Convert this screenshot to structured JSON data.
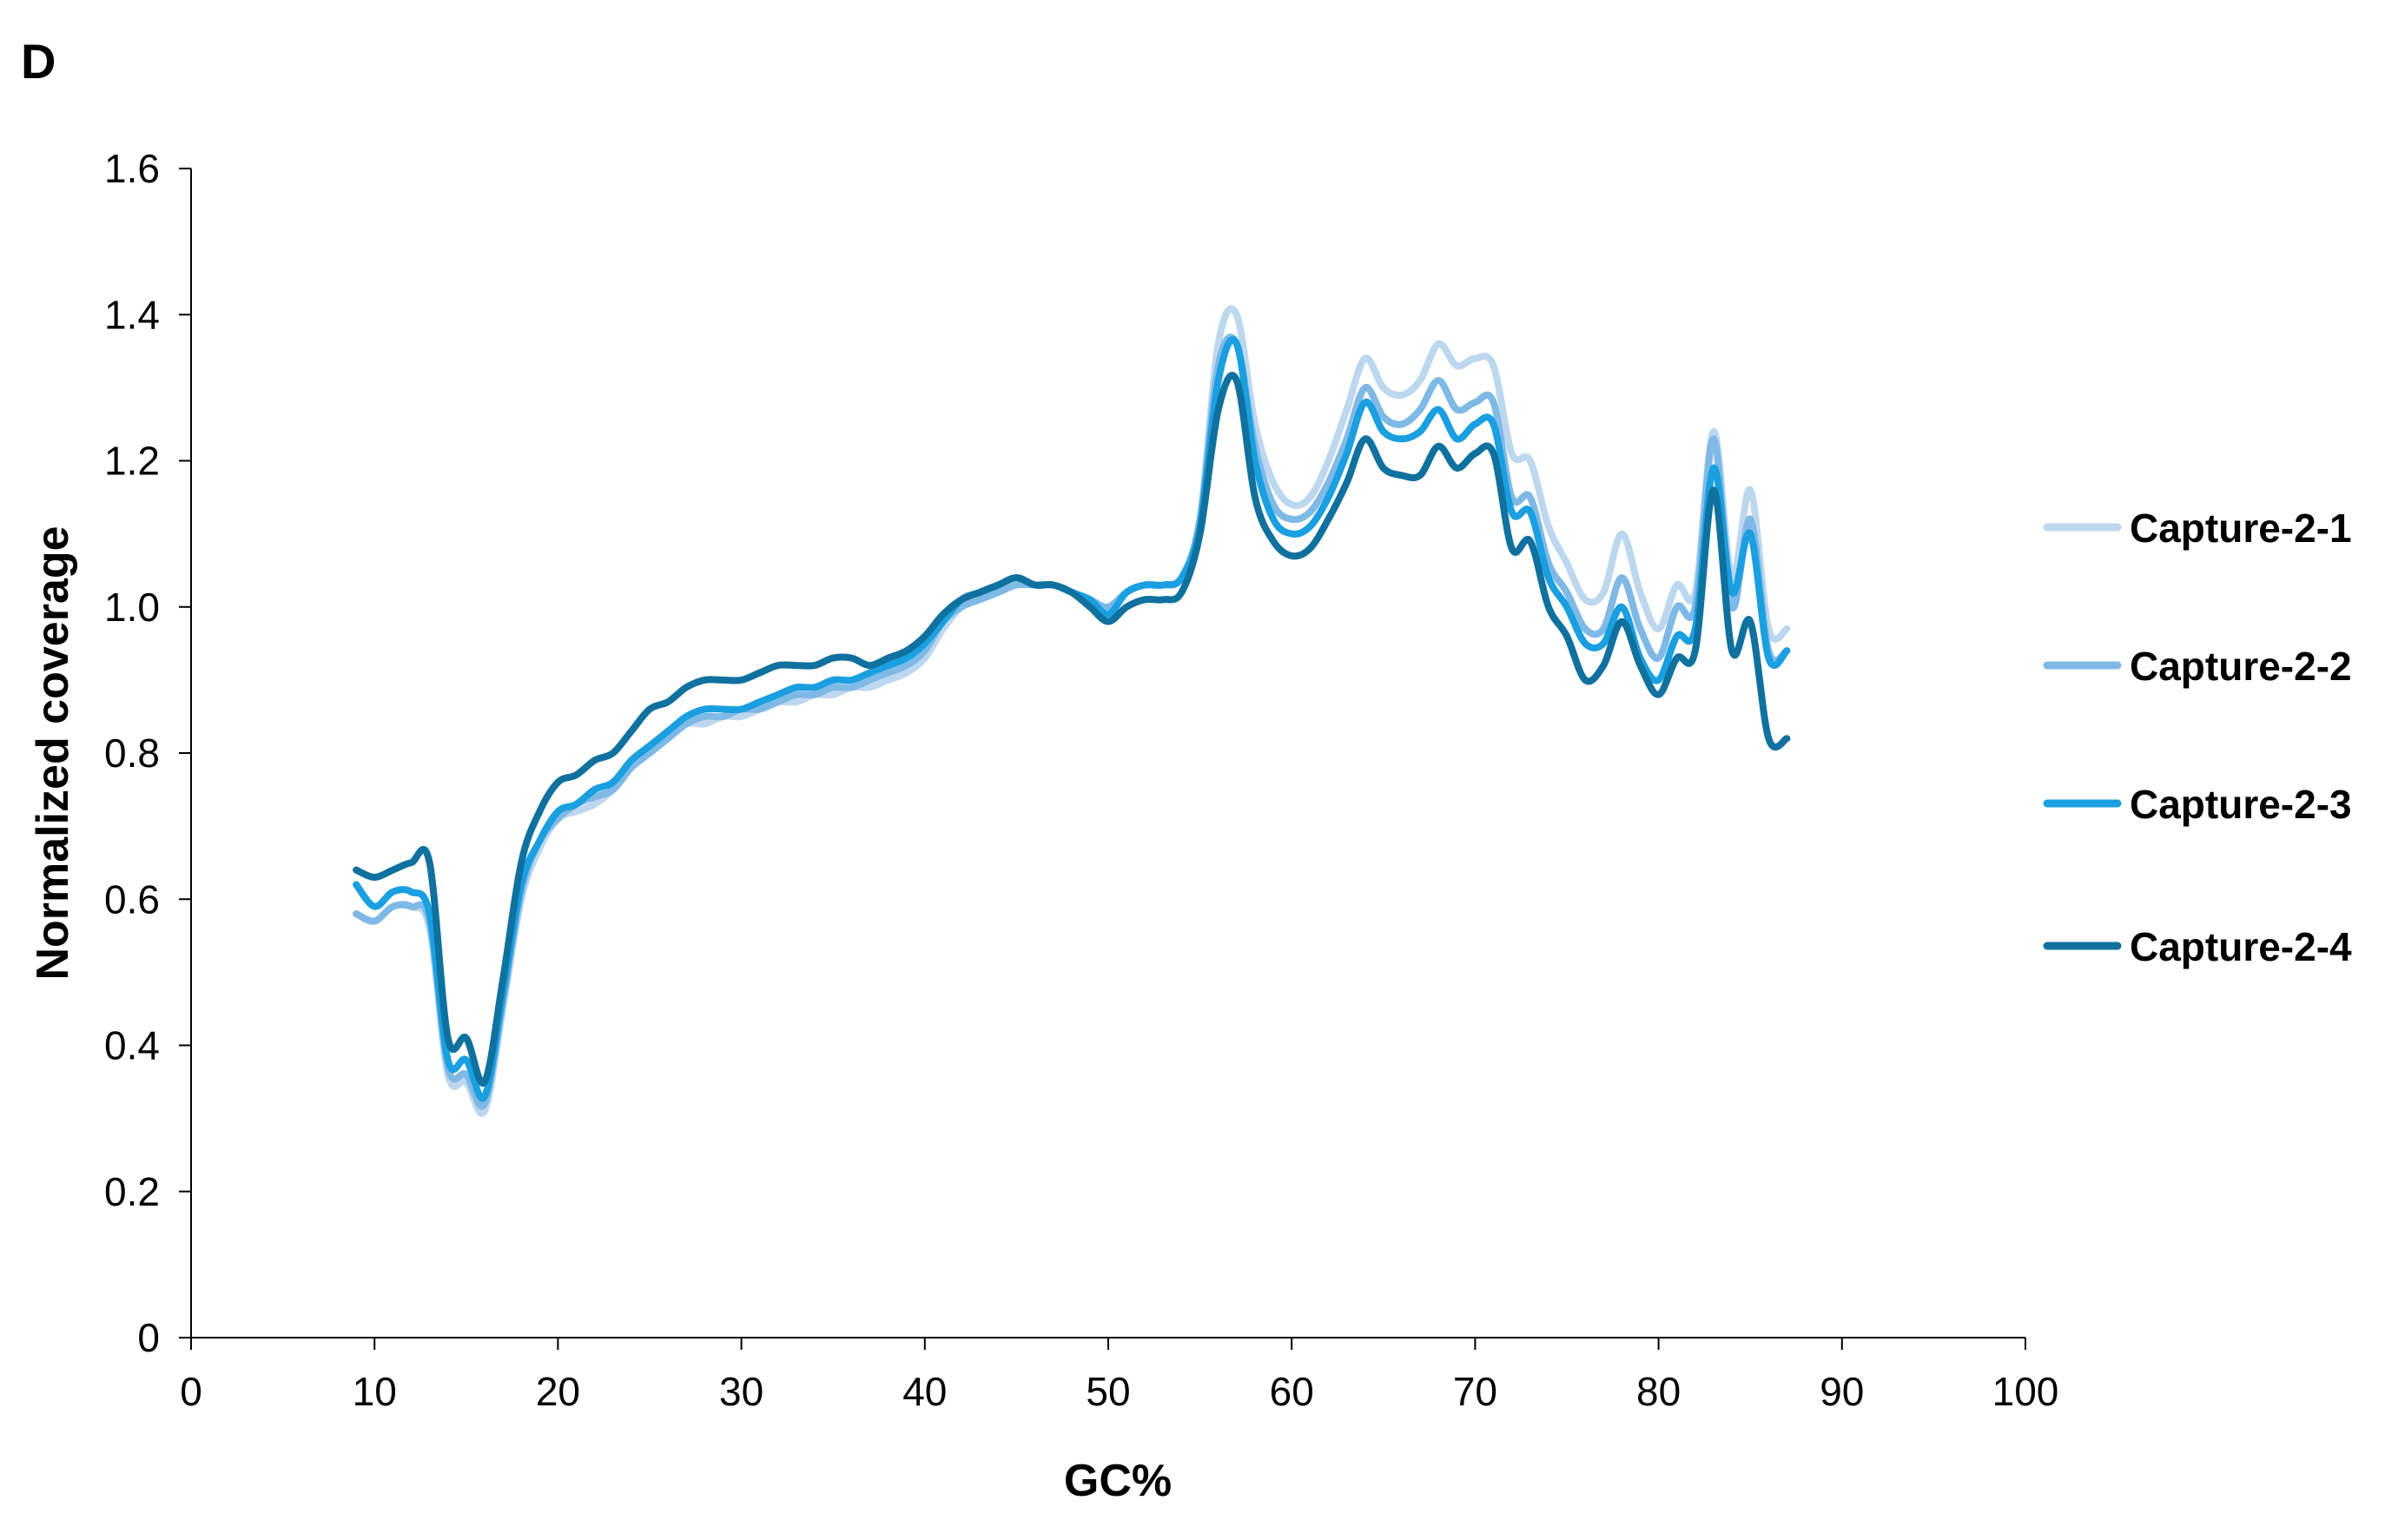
{
  "panel_label": "D",
  "chart_data": {
    "type": "line",
    "title": "",
    "xlabel": "GC%",
    "ylabel": "Normalized coverage",
    "xlim": [
      0,
      100
    ],
    "ylim": [
      0,
      1.6
    ],
    "xticks": [
      0,
      10,
      20,
      30,
      40,
      50,
      60,
      70,
      80,
      90,
      100
    ],
    "yticks": [
      0,
      0.2,
      0.4,
      0.6,
      0.8,
      1.0,
      1.2,
      1.4,
      1.6
    ],
    "ytick_labels": [
      "0",
      "0.2",
      "0.4",
      "0.6",
      "0.8",
      "1.0",
      "1.2",
      "1.4",
      "1.6"
    ],
    "grid": false,
    "legend_position": "right",
    "x": [
      9,
      10,
      11,
      12,
      13,
      14,
      15,
      16,
      17,
      18,
      19,
      20,
      21,
      22,
      23,
      24,
      25,
      26,
      27,
      28,
      29,
      30,
      31,
      32,
      33,
      34,
      35,
      36,
      37,
      38,
      39,
      40,
      41,
      42,
      43,
      44,
      45,
      46,
      47,
      48,
      49,
      50,
      51,
      52,
      53,
      54,
      55,
      56,
      57,
      58,
      59,
      60,
      61,
      62,
      63,
      64,
      65,
      66,
      67,
      68,
      69,
      70,
      71,
      72,
      73,
      74,
      75,
      76,
      77,
      78,
      79,
      80,
      81,
      82,
      83,
      84,
      85,
      86,
      87
    ],
    "series": [
      {
        "name": "Capture-2-1",
        "color": "#bdd7ee",
        "values": [
          0.58,
          0.57,
          0.59,
          0.59,
          0.56,
          0.36,
          0.35,
          0.31,
          0.45,
          0.6,
          0.67,
          0.71,
          0.72,
          0.73,
          0.75,
          0.78,
          0.8,
          0.82,
          0.84,
          0.84,
          0.85,
          0.85,
          0.86,
          0.87,
          0.87,
          0.88,
          0.88,
          0.89,
          0.89,
          0.9,
          0.91,
          0.93,
          0.97,
          1.0,
          1.01,
          1.02,
          1.03,
          1.03,
          1.03,
          1.02,
          1.01,
          1.0,
          1.02,
          1.03,
          1.03,
          1.04,
          1.12,
          1.36,
          1.4,
          1.25,
          1.17,
          1.14,
          1.15,
          1.2,
          1.27,
          1.34,
          1.3,
          1.29,
          1.31,
          1.36,
          1.33,
          1.34,
          1.33,
          1.21,
          1.2,
          1.11,
          1.06,
          1.01,
          1.02,
          1.1,
          1.02,
          0.97,
          1.03,
          1.02,
          1.24,
          1.04,
          1.16,
          0.97,
          0.97
        ]
      },
      {
        "name": "Capture-2-2",
        "color": "#7fb9e6",
        "values": [
          0.58,
          0.57,
          0.59,
          0.59,
          0.57,
          0.37,
          0.36,
          0.32,
          0.46,
          0.61,
          0.68,
          0.71,
          0.73,
          0.74,
          0.75,
          0.78,
          0.8,
          0.82,
          0.84,
          0.85,
          0.85,
          0.86,
          0.86,
          0.87,
          0.88,
          0.88,
          0.89,
          0.89,
          0.9,
          0.91,
          0.92,
          0.94,
          0.98,
          1.0,
          1.01,
          1.02,
          1.03,
          1.03,
          1.03,
          1.02,
          1.01,
          1.0,
          1.02,
          1.03,
          1.03,
          1.04,
          1.12,
          1.33,
          1.36,
          1.22,
          1.14,
          1.12,
          1.13,
          1.17,
          1.23,
          1.3,
          1.26,
          1.25,
          1.27,
          1.31,
          1.27,
          1.28,
          1.28,
          1.15,
          1.15,
          1.06,
          1.02,
          0.97,
          0.97,
          1.04,
          0.97,
          0.93,
          1.0,
          1.0,
          1.23,
          1.0,
          1.12,
          0.94,
          0.94
        ]
      },
      {
        "name": "Capture-2-3",
        "color": "#1a9fe0",
        "values": [
          0.62,
          0.59,
          0.61,
          0.61,
          0.58,
          0.38,
          0.38,
          0.33,
          0.47,
          0.62,
          0.68,
          0.72,
          0.73,
          0.75,
          0.76,
          0.79,
          0.81,
          0.83,
          0.85,
          0.86,
          0.86,
          0.86,
          0.87,
          0.88,
          0.89,
          0.89,
          0.9,
          0.9,
          0.91,
          0.92,
          0.93,
          0.95,
          0.98,
          1.01,
          1.02,
          1.03,
          1.04,
          1.03,
          1.03,
          1.02,
          1.01,
          0.99,
          1.02,
          1.03,
          1.03,
          1.04,
          1.11,
          1.31,
          1.36,
          1.2,
          1.12,
          1.1,
          1.11,
          1.15,
          1.21,
          1.28,
          1.24,
          1.23,
          1.24,
          1.27,
          1.23,
          1.25,
          1.25,
          1.13,
          1.13,
          1.04,
          1.0,
          0.95,
          0.95,
          1.0,
          0.93,
          0.9,
          0.96,
          0.97,
          1.19,
          1.02,
          1.1,
          0.93,
          0.94
        ]
      },
      {
        "name": "Capture-2-4",
        "color": "#10719f",
        "values": [
          0.64,
          0.63,
          0.64,
          0.65,
          0.65,
          0.41,
          0.41,
          0.35,
          0.49,
          0.65,
          0.72,
          0.76,
          0.77,
          0.79,
          0.8,
          0.83,
          0.86,
          0.87,
          0.89,
          0.9,
          0.9,
          0.9,
          0.91,
          0.92,
          0.92,
          0.92,
          0.93,
          0.93,
          0.92,
          0.93,
          0.94,
          0.96,
          0.99,
          1.01,
          1.02,
          1.03,
          1.04,
          1.03,
          1.03,
          1.02,
          1.0,
          0.98,
          1.0,
          1.01,
          1.01,
          1.02,
          1.1,
          1.27,
          1.31,
          1.15,
          1.09,
          1.07,
          1.08,
          1.12,
          1.17,
          1.23,
          1.19,
          1.18,
          1.18,
          1.22,
          1.19,
          1.21,
          1.21,
          1.08,
          1.09,
          1.0,
          0.96,
          0.9,
          0.92,
          0.98,
          0.92,
          0.88,
          0.93,
          0.94,
          1.16,
          0.94,
          0.98,
          0.82,
          0.82
        ]
      }
    ]
  }
}
